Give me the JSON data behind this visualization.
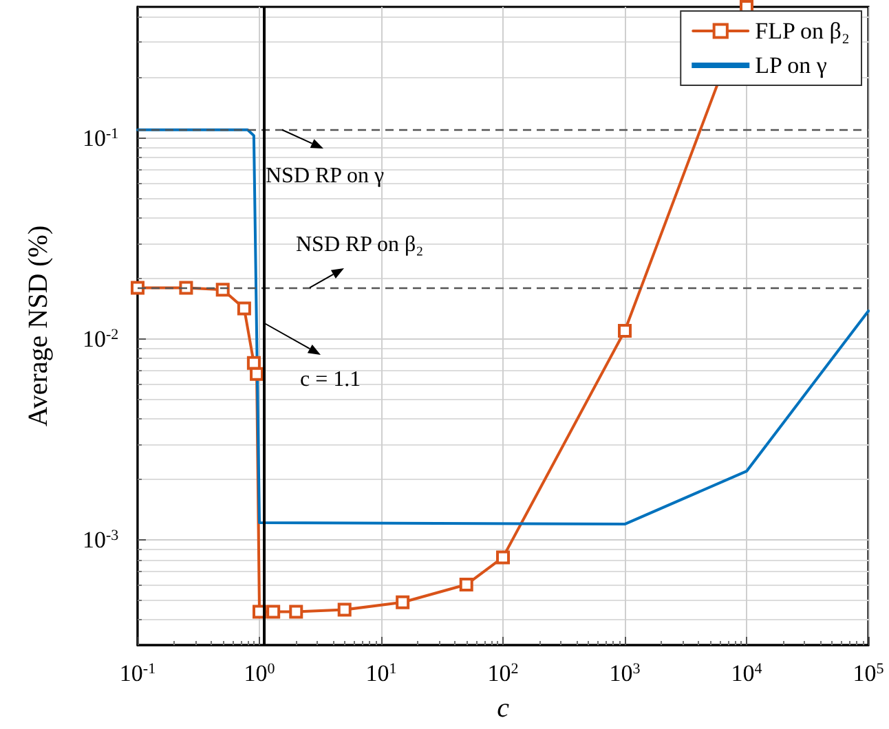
{
  "chart_data": {
    "type": "line",
    "xlabel": "c",
    "ylabel": "Average NSD (%)",
    "series": [
      {
        "name": "FLP on β₂",
        "color": "#d95319",
        "marker": "square",
        "x": [
          0.1,
          0.25,
          0.5,
          0.75,
          0.9,
          0.95,
          1,
          1.3,
          2,
          5,
          15,
          50,
          100,
          1000,
          10000
        ],
        "values": [
          0.018,
          0.018,
          0.0176,
          0.0142,
          0.0076,
          0.0067,
          0.00044,
          0.00044,
          0.00044,
          0.00045,
          0.00049,
          0.0006,
          0.00082,
          0.011,
          0.45
        ]
      },
      {
        "name": "LP on γ",
        "color": "#0072bd",
        "marker": "none",
        "x": [
          0.1,
          0.8,
          0.9,
          1,
          1000,
          10000,
          100000
        ],
        "values": [
          0.11,
          0.11,
          0.103,
          0.00122,
          0.0012,
          0.0022,
          0.0138
        ]
      }
    ],
    "log": "xy",
    "xlim": [
      0.1,
      100000
    ],
    "ylim": [
      0.0003,
      0.45
    ],
    "xticks": [
      {
        "value": 0.1,
        "label": "10$^{-1}$"
      },
      {
        "value": 1,
        "label": "10$^{0}$"
      },
      {
        "value": 10,
        "label": "10$^{1}$"
      },
      {
        "value": 100,
        "label": "10$^{2}$"
      },
      {
        "value": 1000,
        "label": "10$^{3}$"
      },
      {
        "value": 10000,
        "label": "10$^{4}$"
      },
      {
        "value": 100000,
        "label": "10$^{5}$"
      }
    ],
    "yticks": [
      {
        "value": 0.001,
        "label": "10$^{-3}$"
      },
      {
        "value": 0.01,
        "label": "10$^{-2}$"
      },
      {
        "value": 0.1,
        "label": "10$^{-1}$"
      }
    ],
    "ref_lines": [
      {
        "axis": "y",
        "value": 0.11,
        "label": "NSD RP on γ",
        "color": "#555555",
        "line_style": "dashed"
      },
      {
        "axis": "y",
        "value": 0.018,
        "label": "NSD RP on β₂",
        "color": "#555555",
        "line_style": "dashed"
      },
      {
        "axis": "x",
        "value": 1.1,
        "label": "c = 1.1",
        "color": "#000000",
        "line_style": "solid"
      }
    ],
    "grid": true,
    "legend": "top right",
    "line_style": "solid"
  }
}
